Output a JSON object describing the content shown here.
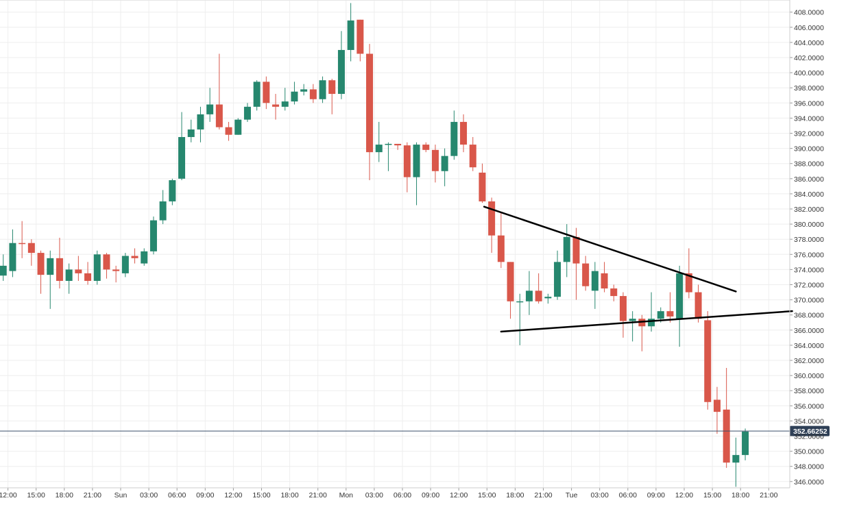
{
  "chart_data": {
    "type": "candlestick",
    "title": "",
    "xlabel": "",
    "ylabel": "",
    "ylim": [
      345,
      409
    ],
    "grid": true,
    "colors": {
      "up": "#26876e",
      "down": "#d9574a",
      "grid": "#eeeeee",
      "price_line": "#3a4f6a",
      "price_badge": "#2f4057",
      "trendline": "#000000"
    },
    "x_tick_labels": [
      {
        "hour": -4,
        "label": "12:00"
      },
      {
        "hour": -1,
        "label": "15:00"
      },
      {
        "hour": 2,
        "label": "18:00"
      },
      {
        "hour": 5,
        "label": "21:00"
      },
      {
        "hour": 8,
        "label": "Sun"
      },
      {
        "hour": 11,
        "label": "03:00"
      },
      {
        "hour": 14,
        "label": "06:00"
      },
      {
        "hour": 17,
        "label": "09:00"
      },
      {
        "hour": 20,
        "label": "12:00"
      },
      {
        "hour": 23,
        "label": "15:00"
      },
      {
        "hour": 26,
        "label": "18:00"
      },
      {
        "hour": 29,
        "label": "21:00"
      },
      {
        "hour": 32,
        "label": "Mon"
      },
      {
        "hour": 35,
        "label": "03:00"
      },
      {
        "hour": 38,
        "label": "06:00"
      },
      {
        "hour": 41,
        "label": "09:00"
      },
      {
        "hour": 44,
        "label": "12:00"
      },
      {
        "hour": 47,
        "label": "15:00"
      },
      {
        "hour": 50,
        "label": "18:00"
      },
      {
        "hour": 53,
        "label": "21:00"
      },
      {
        "hour": 56,
        "label": "Tue"
      },
      {
        "hour": 59,
        "label": "03:00"
      },
      {
        "hour": 62,
        "label": "06:00"
      },
      {
        "hour": 65,
        "label": "09:00"
      },
      {
        "hour": 68,
        "label": "12:00"
      },
      {
        "hour": 71,
        "label": "15:00"
      },
      {
        "hour": 74,
        "label": "18:00"
      },
      {
        "hour": 77,
        "label": "21:00"
      }
    ],
    "y_ticks": [
      "346.0000",
      "348.0000",
      "350.0000",
      "352.0000",
      "354.0000",
      "356.0000",
      "358.0000",
      "360.0000",
      "362.0000",
      "364.0000",
      "366.0000",
      "368.0000",
      "370.0000",
      "372.0000",
      "374.0000",
      "376.0000",
      "378.0000",
      "380.0000",
      "382.0000",
      "384.0000",
      "386.0000",
      "388.0000",
      "390.0000",
      "392.0000",
      "394.0000",
      "396.0000",
      "398.0000",
      "400.0000",
      "402.0000",
      "404.0000",
      "406.0000",
      "408.0000"
    ],
    "current_price": 352.66252,
    "current_price_label": "352.66252",
    "candles": [
      {
        "h": -4.5,
        "o": 373.2,
        "c": 374.5,
        "hi": 376.0,
        "lo": 372.5
      },
      {
        "h": -3.5,
        "o": 373.8,
        "c": 377.5,
        "hi": 379.3,
        "lo": 373.0
      },
      {
        "h": -2.5,
        "o": 377.5,
        "c": 377.4,
        "hi": 380.4,
        "lo": 375.5
      },
      {
        "h": -1.5,
        "o": 377.5,
        "c": 376.2,
        "hi": 378.0,
        "lo": 374.5
      },
      {
        "h": -0.5,
        "o": 376.2,
        "c": 373.3,
        "hi": 376.5,
        "lo": 370.8
      },
      {
        "h": 0.5,
        "o": 373.3,
        "c": 375.5,
        "hi": 376.5,
        "lo": 368.8
      },
      {
        "h": 1.5,
        "o": 375.5,
        "c": 372.5,
        "hi": 378.2,
        "lo": 371.5
      },
      {
        "h": 2.5,
        "o": 372.5,
        "c": 374.0,
        "hi": 374.8,
        "lo": 370.8
      },
      {
        "h": 3.5,
        "o": 374.0,
        "c": 373.5,
        "hi": 375.8,
        "lo": 372.5
      },
      {
        "h": 4.5,
        "o": 373.5,
        "c": 372.5,
        "hi": 375.0,
        "lo": 372.0
      },
      {
        "h": 5.5,
        "o": 372.5,
        "c": 376.0,
        "hi": 376.5,
        "lo": 372.0
      },
      {
        "h": 6.5,
        "o": 376.0,
        "c": 374.0,
        "hi": 376.2,
        "lo": 372.8
      },
      {
        "h": 7.5,
        "o": 374.0,
        "c": 373.8,
        "hi": 374.5,
        "lo": 372.3
      },
      {
        "h": 8.5,
        "o": 373.5,
        "c": 375.8,
        "hi": 376.2,
        "lo": 373.0
      },
      {
        "h": 9.5,
        "o": 375.8,
        "c": 375.5,
        "hi": 376.8,
        "lo": 374.8
      },
      {
        "h": 10.5,
        "o": 374.8,
        "c": 376.4,
        "hi": 376.8,
        "lo": 374.5
      },
      {
        "h": 11.5,
        "o": 376.4,
        "c": 380.5,
        "hi": 381.0,
        "lo": 376.0
      },
      {
        "h": 12.5,
        "o": 380.5,
        "c": 383.0,
        "hi": 384.5,
        "lo": 380.0
      },
      {
        "h": 13.5,
        "o": 383.0,
        "c": 385.8,
        "hi": 386.0,
        "lo": 382.5
      },
      {
        "h": 14.5,
        "o": 386.0,
        "c": 391.5,
        "hi": 394.8,
        "lo": 385.8
      },
      {
        "h": 15.5,
        "o": 391.5,
        "c": 392.5,
        "hi": 393.8,
        "lo": 390.8
      },
      {
        "h": 16.5,
        "o": 392.5,
        "c": 394.5,
        "hi": 395.5,
        "lo": 390.8
      },
      {
        "h": 17.5,
        "o": 394.5,
        "c": 395.8,
        "hi": 398.0,
        "lo": 393.5
      },
      {
        "h": 18.5,
        "o": 395.8,
        "c": 392.8,
        "hi": 402.5,
        "lo": 392.5
      },
      {
        "h": 19.5,
        "o": 392.8,
        "c": 391.8,
        "hi": 393.5,
        "lo": 391.0
      },
      {
        "h": 20.5,
        "o": 391.8,
        "c": 393.8,
        "hi": 394.0,
        "lo": 391.8
      },
      {
        "h": 21.5,
        "o": 393.8,
        "c": 395.5,
        "hi": 396.0,
        "lo": 393.5
      },
      {
        "h": 22.5,
        "o": 395.5,
        "c": 398.8,
        "hi": 399.0,
        "lo": 395.0
      },
      {
        "h": 23.5,
        "o": 398.8,
        "c": 396.0,
        "hi": 399.5,
        "lo": 395.2
      },
      {
        "h": 24.5,
        "o": 395.8,
        "c": 395.5,
        "hi": 397.2,
        "lo": 393.8
      },
      {
        "h": 25.5,
        "o": 395.5,
        "c": 396.2,
        "hi": 398.0,
        "lo": 395.0
      },
      {
        "h": 26.5,
        "o": 396.2,
        "c": 397.5,
        "hi": 398.8,
        "lo": 395.8
      },
      {
        "h": 27.5,
        "o": 397.5,
        "c": 397.8,
        "hi": 398.5,
        "lo": 397.0
      },
      {
        "h": 28.5,
        "o": 397.8,
        "c": 396.5,
        "hi": 398.5,
        "lo": 396.0
      },
      {
        "h": 29.5,
        "o": 396.5,
        "c": 399.0,
        "hi": 399.5,
        "lo": 396.0
      },
      {
        "h": 30.5,
        "o": 399.0,
        "c": 397.2,
        "hi": 399.2,
        "lo": 394.5
      },
      {
        "h": 31.5,
        "o": 397.2,
        "c": 403.0,
        "hi": 405.5,
        "lo": 396.5
      },
      {
        "h": 32.5,
        "o": 403.0,
        "c": 406.9,
        "hi": 409.2,
        "lo": 401.5
      },
      {
        "h": 33.5,
        "o": 407.0,
        "c": 402.5,
        "hi": 407.0,
        "lo": 401.5
      },
      {
        "h": 34.5,
        "o": 402.5,
        "c": 389.5,
        "hi": 403.8,
        "lo": 385.8
      },
      {
        "h": 35.5,
        "o": 389.5,
        "c": 390.5,
        "hi": 393.5,
        "lo": 388.2
      },
      {
        "h": 36.5,
        "o": 390.5,
        "c": 390.6,
        "hi": 390.8,
        "lo": 387.0
      },
      {
        "h": 37.5,
        "o": 390.6,
        "c": 390.4,
        "hi": 390.6,
        "lo": 389.8
      },
      {
        "h": 38.5,
        "o": 390.4,
        "c": 386.2,
        "hi": 390.8,
        "lo": 384.2
      },
      {
        "h": 39.5,
        "o": 386.2,
        "c": 390.5,
        "hi": 390.8,
        "lo": 382.5
      },
      {
        "h": 40.5,
        "o": 390.5,
        "c": 389.8,
        "hi": 390.8,
        "lo": 389.5
      },
      {
        "h": 41.5,
        "o": 389.8,
        "c": 387.0,
        "hi": 390.5,
        "lo": 385.5
      },
      {
        "h": 42.5,
        "o": 387.0,
        "c": 389.0,
        "hi": 390.0,
        "lo": 385.0
      },
      {
        "h": 43.5,
        "o": 389.0,
        "c": 393.5,
        "hi": 395.0,
        "lo": 388.5
      },
      {
        "h": 44.5,
        "o": 393.5,
        "c": 390.5,
        "hi": 394.5,
        "lo": 389.5
      },
      {
        "h": 45.5,
        "o": 390.5,
        "c": 387.5,
        "hi": 391.5,
        "lo": 387.0
      },
      {
        "h": 46.5,
        "o": 386.8,
        "c": 383.0,
        "hi": 388.0,
        "lo": 382.8
      },
      {
        "h": 47.5,
        "o": 383.0,
        "c": 378.5,
        "hi": 383.5,
        "lo": 376.2
      },
      {
        "h": 48.5,
        "o": 378.5,
        "c": 375.0,
        "hi": 381.5,
        "lo": 374.2
      },
      {
        "h": 49.5,
        "o": 375.0,
        "c": 369.8,
        "hi": 375.0,
        "lo": 367.5
      },
      {
        "h": 50.5,
        "o": 369.8,
        "c": 369.8,
        "hi": 370.8,
        "lo": 364.0
      },
      {
        "h": 51.5,
        "o": 369.8,
        "c": 371.2,
        "hi": 373.8,
        "lo": 368.0
      },
      {
        "h": 52.5,
        "o": 371.2,
        "c": 369.8,
        "hi": 373.5,
        "lo": 369.5
      },
      {
        "h": 53.5,
        "o": 370.2,
        "c": 370.4,
        "hi": 370.8,
        "lo": 369.5
      },
      {
        "h": 54.5,
        "o": 370.4,
        "c": 375.0,
        "hi": 376.5,
        "lo": 370.0
      },
      {
        "h": 55.5,
        "o": 375.0,
        "c": 378.3,
        "hi": 380.0,
        "lo": 373.0
      },
      {
        "h": 56.5,
        "o": 378.3,
        "c": 374.8,
        "hi": 379.5,
        "lo": 370.0
      },
      {
        "h": 57.5,
        "o": 374.8,
        "c": 371.8,
        "hi": 375.8,
        "lo": 371.2
      },
      {
        "h": 58.5,
        "o": 371.2,
        "c": 373.8,
        "hi": 375.0,
        "lo": 368.8
      },
      {
        "h": 59.5,
        "o": 373.5,
        "c": 371.5,
        "hi": 375.0,
        "lo": 371.0
      },
      {
        "h": 60.5,
        "o": 371.5,
        "c": 370.5,
        "hi": 372.0,
        "lo": 369.8
      },
      {
        "h": 61.5,
        "o": 370.5,
        "c": 367.2,
        "hi": 371.0,
        "lo": 365.0
      },
      {
        "h": 62.5,
        "o": 367.2,
        "c": 367.5,
        "hi": 368.5,
        "lo": 364.5
      },
      {
        "h": 63.5,
        "o": 367.5,
        "c": 366.5,
        "hi": 368.0,
        "lo": 363.2
      },
      {
        "h": 64.5,
        "o": 366.5,
        "c": 367.5,
        "hi": 371.0,
        "lo": 365.8
      },
      {
        "h": 65.5,
        "o": 367.5,
        "c": 368.5,
        "hi": 369.0,
        "lo": 367.0
      },
      {
        "h": 66.5,
        "o": 368.5,
        "c": 367.8,
        "hi": 371.0,
        "lo": 367.0
      },
      {
        "h": 67.5,
        "o": 367.5,
        "c": 373.5,
        "hi": 374.5,
        "lo": 363.8
      },
      {
        "h": 68.5,
        "o": 373.5,
        "c": 371.0,
        "hi": 376.8,
        "lo": 370.2
      },
      {
        "h": 69.5,
        "o": 371.0,
        "c": 367.5,
        "hi": 372.0,
        "lo": 367.0
      },
      {
        "h": 70.5,
        "o": 367.3,
        "c": 356.5,
        "hi": 368.5,
        "lo": 355.5
      },
      {
        "h": 71.5,
        "o": 356.8,
        "c": 355.2,
        "hi": 358.5,
        "lo": 352.3
      },
      {
        "h": 72.5,
        "o": 355.5,
        "c": 348.5,
        "hi": 361.0,
        "lo": 347.8
      },
      {
        "h": 73.5,
        "o": 348.5,
        "c": 349.5,
        "hi": 351.8,
        "lo": 345.3
      },
      {
        "h": 74.5,
        "o": 349.5,
        "c": 352.6,
        "hi": 353.0,
        "lo": 348.8
      }
    ],
    "trendlines": [
      {
        "h1": 46.7,
        "v1": 382.3,
        "h2": 73.5,
        "v2": 371.1
      },
      {
        "h1": 48.5,
        "v1": 365.8,
        "h2": 79.5,
        "v2": 368.5
      }
    ]
  }
}
